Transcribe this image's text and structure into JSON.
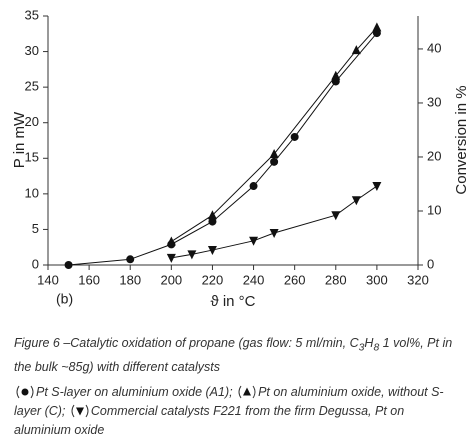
{
  "chart_data": {
    "type": "line",
    "panel_label": "(b)",
    "xlabel": "ϑ in °C",
    "ylabel": "P in mW",
    "y2label": "Conversion in %",
    "xlim": [
      140,
      320
    ],
    "xticks": [
      140,
      160,
      180,
      200,
      220,
      240,
      260,
      280,
      300,
      320
    ],
    "ylim": [
      0,
      35
    ],
    "yticks": [
      0,
      5,
      10,
      15,
      20,
      25,
      30,
      35
    ],
    "y2lim": [
      0,
      46.1
    ],
    "y2ticks": [
      0,
      10,
      20,
      30,
      40
    ],
    "series": [
      {
        "name": "Pt S-layer on aluminium oxide (A1);",
        "color": "#111111",
        "marker": "circle",
        "x": [
          150,
          180,
          200,
          220,
          240,
          250,
          260,
          280,
          300
        ],
        "values": [
          0,
          0.8,
          2.9,
          6.1,
          11.1,
          14.5,
          18,
          25.8,
          32.6
        ]
      },
      {
        "name": "Pt on aluminium oxide, without S-layer (C);",
        "color": "#111111",
        "marker": "triangle",
        "x": [
          200,
          220,
          250,
          280,
          290,
          300
        ],
        "values": [
          3.3,
          7,
          15.6,
          26.6,
          30.2,
          33.4
        ]
      },
      {
        "name": "Commercial catalysts F221 from the firm Degussa, Pt on aluminium oxide",
        "color": "#111111",
        "marker": "triangle-down",
        "x": [
          200,
          210,
          220,
          240,
          250,
          280,
          290,
          300
        ],
        "values": [
          1,
          1.5,
          2.1,
          3.4,
          4.5,
          7,
          9.1,
          11.1
        ]
      }
    ],
    "caption_parts": [
      "Figure 6  –Catalytic oxidation of propane (gas flow: 5 ml/min, C",
      "3",
      "H",
      "8",
      " 1 vol%, Pt in the bulk ~85g) with different catalysts"
    ]
  }
}
